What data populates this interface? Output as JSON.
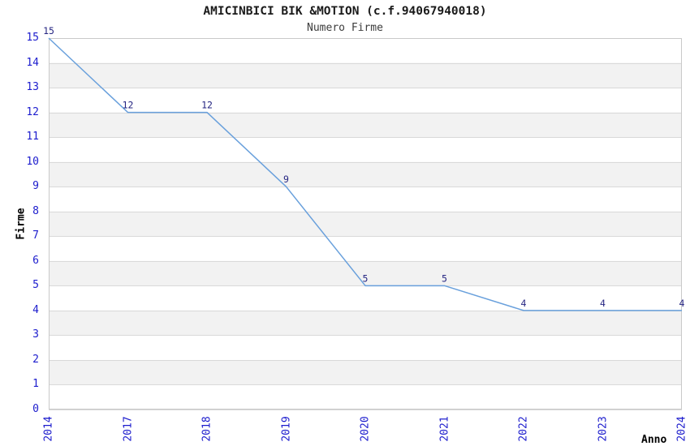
{
  "chart_data": {
    "type": "line",
    "title": "AMICINBICI BIK &MOTION (c.f.94067940018)",
    "subtitle": "Numero Firme",
    "xlabel": "Anno",
    "ylabel": "Firme",
    "x": [
      "2014",
      "2017",
      "2018",
      "2019",
      "2020",
      "2021",
      "2022",
      "2023",
      "2024"
    ],
    "series": [
      {
        "name": "Numero Firme",
        "values": [
          15,
          12,
          12,
          9,
          5,
          5,
          4,
          4,
          4
        ]
      }
    ],
    "data_labels": [
      "15",
      "12",
      "12",
      "9",
      "5",
      "5",
      "4",
      "4",
      "4"
    ],
    "ylim": [
      0,
      15
    ],
    "ytick_step": 1,
    "grid": "horizontal alternating bands, gridline at every integer",
    "legend": "none",
    "colors": {
      "line": "#69a0dc",
      "tick_label": "#1c1ccd",
      "data_label": "#252582",
      "band": "#f2f2f2",
      "gridline": "#d9d9d9",
      "spine": "#c9c9c9",
      "title": "#1a1a1a",
      "subtitle": "#3c3c3c",
      "axis_label": "#000000"
    }
  }
}
